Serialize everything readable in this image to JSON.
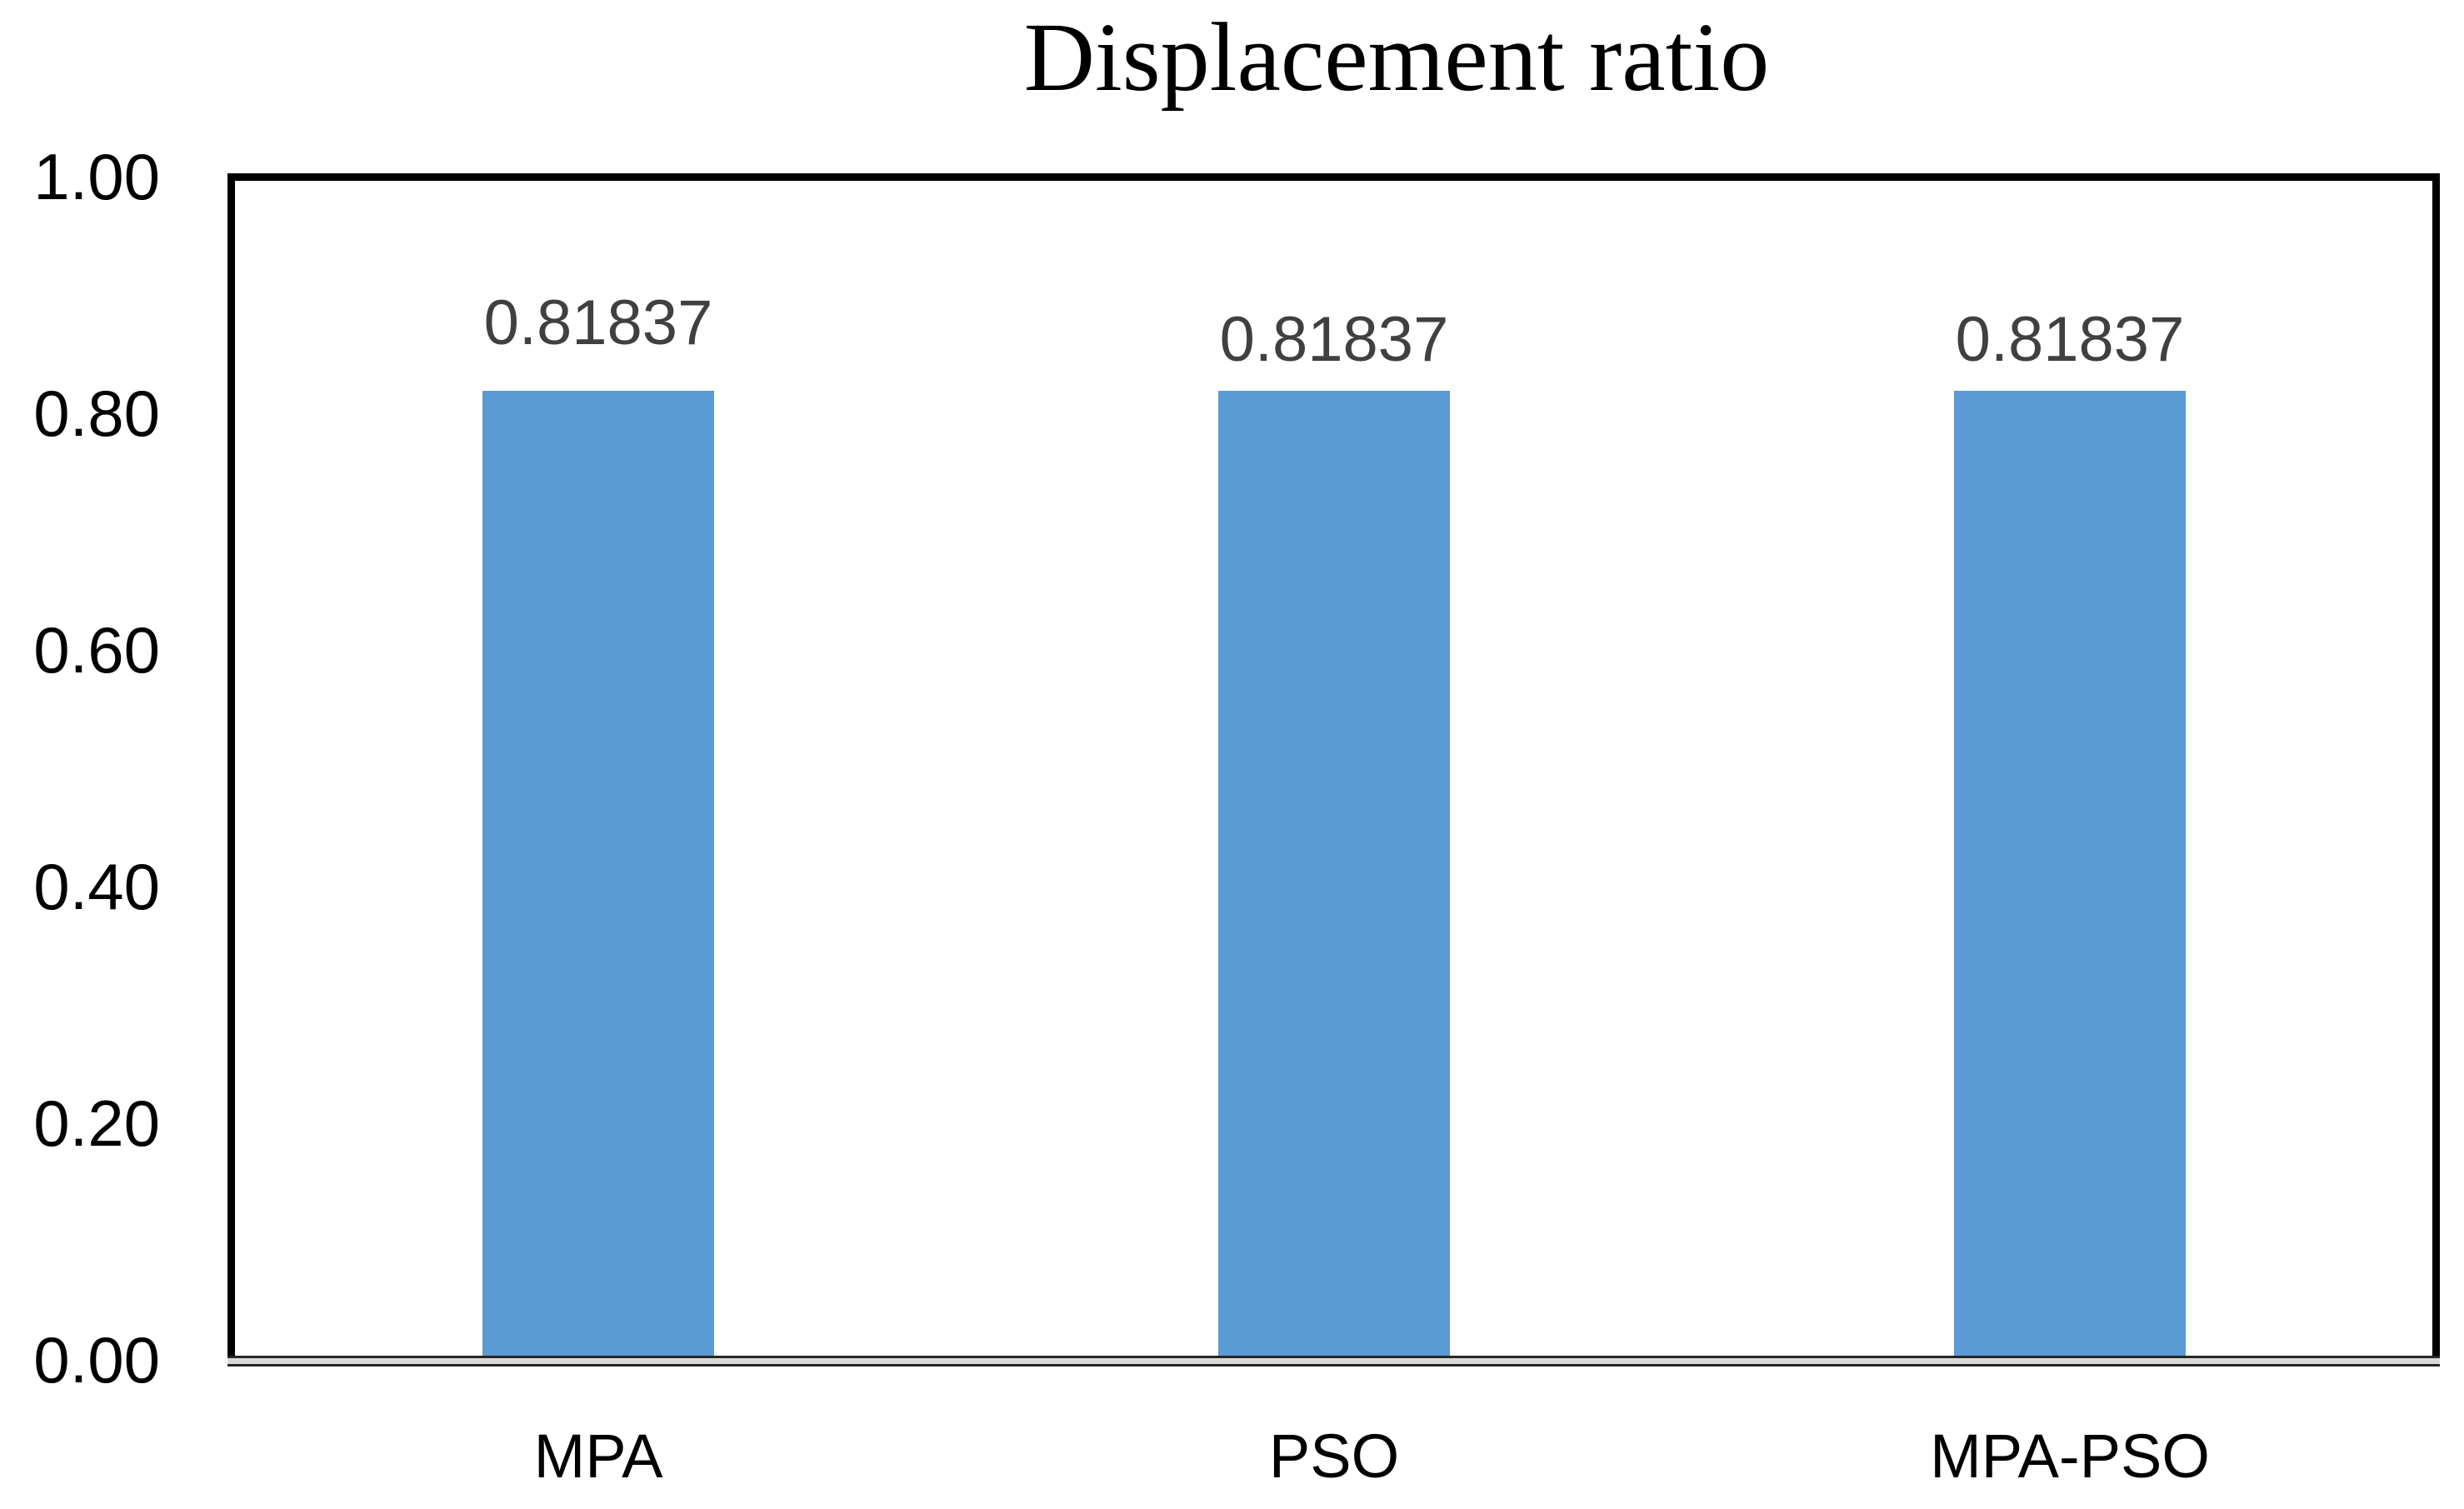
{
  "chart_data": {
    "type": "bar",
    "title": "Displacement ratio",
    "categories": [
      "MPA",
      "PSO",
      "MPA-PSO"
    ],
    "values": [
      0.81837,
      0.81837,
      0.81837
    ],
    "data_labels": [
      "0.81837",
      "0.81837",
      "0.81837"
    ],
    "ytick_labels": [
      "1.00",
      "0.80",
      "0.60",
      "0.40",
      "0.20",
      "0.00"
    ],
    "ytick_values": [
      1.0,
      0.8,
      0.6,
      0.4,
      0.2,
      0.0
    ],
    "ylim": [
      0.0,
      1.0
    ],
    "xlabel": "",
    "ylabel": "",
    "grid": false,
    "legend": "none",
    "colors": {
      "bar": "#5B9BD5",
      "value_label": "#404040",
      "axis_text": "#000000",
      "plot_border": "#000000",
      "axis_line_fill": "#D9D9D9"
    }
  }
}
